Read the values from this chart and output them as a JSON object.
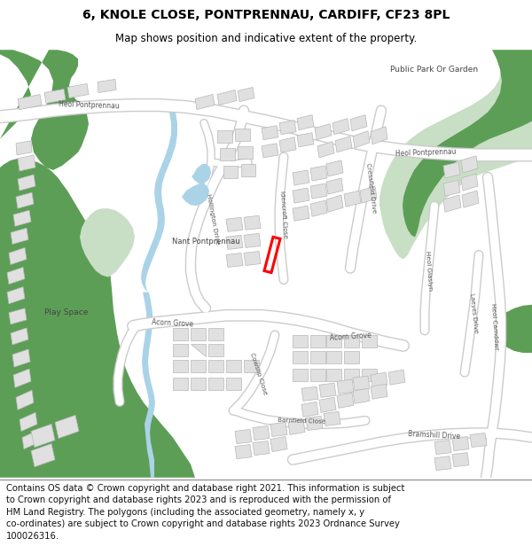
{
  "title": "6, KNOLE CLOSE, PONTPRENNAU, CARDIFF, CF23 8PL",
  "subtitle": "Map shows position and indicative extent of the property.",
  "footer_line1": "Contains OS data © Crown copyright and database right 2021. This information is subject",
  "footer_line2": "to Crown copyright and database rights 2023 and is reproduced with the permission of",
  "footer_line3": "HM Land Registry. The polygons (including the associated geometry, namely x, y",
  "footer_line4": "co-ordinates) are subject to Crown copyright and database rights 2023 Ordnance Survey",
  "footer_line5": "100026316.",
  "map_bg": "#f2f2f2",
  "road_color": "#ffffff",
  "road_outline": "#cccccc",
  "building_color": "#e0e0e0",
  "building_outline": "#b8b8b8",
  "green_dark": "#5d9e57",
  "green_light": "#c8dfc5",
  "water_color": "#aad3e8",
  "plot_color": "#ff0000",
  "title_fontsize": 10,
  "subtitle_fontsize": 8.5,
  "footer_fontsize": 7.2,
  "label_color": "#555555"
}
